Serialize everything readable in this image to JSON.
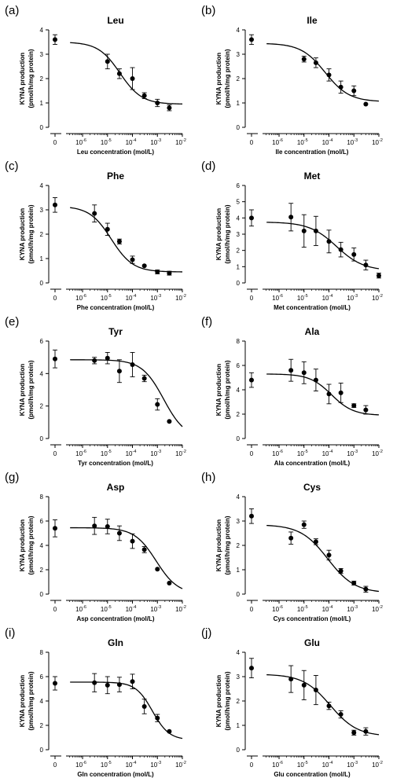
{
  "chart_data": [
    {
      "type": "scatter",
      "panel_label": "(a)",
      "title": "Leu",
      "xlabel": "Leu concentration (mol/L)",
      "ylabel": [
        "KYNA production",
        "(pmol/h/mg protein)"
      ],
      "ylim": [
        0,
        4
      ],
      "yticks": [
        "0",
        "1",
        "2",
        "3",
        "4"
      ],
      "zero_label": "0",
      "xtick_exponents": [
        "-6",
        "-5",
        "-4",
        "-3",
        "-2"
      ],
      "control": {
        "y": 3.6,
        "err": 0.2
      },
      "points": [
        {
          "x": 1e-05,
          "y": 2.7,
          "err": 0.3
        },
        {
          "x": 3e-05,
          "y": 2.2,
          "err": 0.2
        },
        {
          "x": 0.0001,
          "y": 2.0,
          "err": 0.45
        },
        {
          "x": 0.0003,
          "y": 1.3,
          "err": 0.12
        },
        {
          "x": 0.001,
          "y": 1.0,
          "err": 0.15
        },
        {
          "x": 0.003,
          "y": 0.8,
          "err": 0.12
        }
      ],
      "fit": {
        "top": 3.5,
        "bottom": 0.95,
        "log_ic50": -4.5,
        "hill": 1.0
      }
    },
    {
      "type": "scatter",
      "panel_label": "(b)",
      "title": "Ile",
      "xlabel": "Ile concentration (mol/L)",
      "ylabel": [
        "KYNA production",
        "(pmol/h/mg protein)"
      ],
      "ylim": [
        0,
        4
      ],
      "yticks": [
        "0",
        "1",
        "2",
        "3",
        "4"
      ],
      "zero_label": "0",
      "xtick_exponents": [
        "-6",
        "-5",
        "-4",
        "-3",
        "-2"
      ],
      "control": {
        "y": 3.6,
        "err": 0.2
      },
      "points": [
        {
          "x": 1e-05,
          "y": 2.8,
          "err": 0.12
        },
        {
          "x": 3e-05,
          "y": 2.65,
          "err": 0.2
        },
        {
          "x": 0.0001,
          "y": 2.15,
          "err": 0.25
        },
        {
          "x": 0.0003,
          "y": 1.65,
          "err": 0.25
        },
        {
          "x": 0.001,
          "y": 1.5,
          "err": 0.2
        },
        {
          "x": 0.003,
          "y": 0.95,
          "err": 0
        }
      ],
      "fit": {
        "top": 3.45,
        "bottom": 1.05,
        "log_ic50": -4.15,
        "hill": 0.9
      }
    },
    {
      "type": "scatter",
      "panel_label": "(c)",
      "title": "Phe",
      "xlabel": "Phe concentration (mol/L)",
      "ylabel": [
        "KYNA production",
        "(pmol/h/mg protein)"
      ],
      "ylim": [
        0,
        4
      ],
      "yticks": [
        "0",
        "1",
        "2",
        "3",
        "4"
      ],
      "zero_label": "0",
      "xtick_exponents": [
        "-6",
        "-5",
        "-4",
        "-3",
        "-2"
      ],
      "control": {
        "y": 3.2,
        "err": 0.3
      },
      "points": [
        {
          "x": 3e-06,
          "y": 2.85,
          "err": 0.35
        },
        {
          "x": 1e-05,
          "y": 2.2,
          "err": 0.25
        },
        {
          "x": 3e-05,
          "y": 1.7,
          "err": 0.1
        },
        {
          "x": 0.0001,
          "y": 0.95,
          "err": 0.15
        },
        {
          "x": 0.0003,
          "y": 0.7,
          "err": 0
        },
        {
          "x": 0.001,
          "y": 0.45,
          "err": 0.08
        },
        {
          "x": 0.003,
          "y": 0.4,
          "err": 0.08
        }
      ],
      "fit": {
        "top": 3.15,
        "bottom": 0.45,
        "log_ic50": -4.85,
        "hill": 1.0
      }
    },
    {
      "type": "scatter",
      "panel_label": "(d)",
      "title": "Met",
      "xlabel": "Met concentration (mol/L)",
      "ylabel": [
        "KYNA production",
        "(pmol/h/mg protein)"
      ],
      "ylim": [
        0,
        6
      ],
      "yticks": [
        "0",
        "1",
        "2",
        "3",
        "4",
        "5",
        "6"
      ],
      "zero_label": "0",
      "xtick_exponents": [
        "-6",
        "-5",
        "-4",
        "-3",
        "-2"
      ],
      "control": {
        "y": 4.0,
        "err": 0.5
      },
      "points": [
        {
          "x": 3e-06,
          "y": 4.05,
          "err": 0.85
        },
        {
          "x": 1e-05,
          "y": 3.2,
          "err": 1.0
        },
        {
          "x": 3e-05,
          "y": 3.2,
          "err": 0.9
        },
        {
          "x": 0.0001,
          "y": 2.55,
          "err": 0.7
        },
        {
          "x": 0.0003,
          "y": 2.05,
          "err": 0.45
        },
        {
          "x": 0.001,
          "y": 1.75,
          "err": 0.4
        },
        {
          "x": 0.003,
          "y": 1.1,
          "err": 0.3
        },
        {
          "x": 0.01,
          "y": 0.45,
          "err": 0.15
        }
      ],
      "fit": {
        "top": 3.75,
        "bottom": 0.75,
        "log_ic50": -3.7,
        "hill": 0.8
      }
    },
    {
      "type": "scatter",
      "panel_label": "(e)",
      "title": "Tyr",
      "xlabel": "Tyr concentration (mol/L)",
      "ylabel": [
        "KYNA production",
        "(pmol/h/mg protein)"
      ],
      "ylim": [
        0,
        6
      ],
      "yticks": [
        "0",
        "2",
        "4",
        "6"
      ],
      "zero_label": "0",
      "xtick_exponents": [
        "-6",
        "-5",
        "-4",
        "-3",
        "-2"
      ],
      "control": {
        "y": 4.9,
        "err": 0.55
      },
      "points": [
        {
          "x": 3e-06,
          "y": 4.8,
          "err": 0.2
        },
        {
          "x": 1e-05,
          "y": 4.95,
          "err": 0.35
        },
        {
          "x": 3e-05,
          "y": 4.15,
          "err": 0.7
        },
        {
          "x": 0.0001,
          "y": 4.55,
          "err": 0.75
        },
        {
          "x": 0.0003,
          "y": 3.7,
          "err": 0.2
        },
        {
          "x": 0.001,
          "y": 2.1,
          "err": 0.35
        },
        {
          "x": 0.003,
          "y": 1.05,
          "err": 0
        }
      ],
      "fit": {
        "top": 4.85,
        "bottom": 0,
        "log_ic50": -2.75,
        "hill": 1.0
      }
    },
    {
      "type": "scatter",
      "panel_label": "(f)",
      "title": "Ala",
      "xlabel": "Ala concentration (mol/L)",
      "ylabel": [
        "KYNA production",
        "(pmol/h/mg protein)"
      ],
      "ylim": [
        0,
        8
      ],
      "yticks": [
        "0",
        "2",
        "4",
        "6",
        "8"
      ],
      "zero_label": "0",
      "xtick_exponents": [
        "-6",
        "-5",
        "-4",
        "-3",
        "-2"
      ],
      "control": {
        "y": 4.8,
        "err": 0.6
      },
      "points": [
        {
          "x": 3e-06,
          "y": 5.6,
          "err": 0.9
        },
        {
          "x": 1e-05,
          "y": 5.4,
          "err": 0.9
        },
        {
          "x": 3e-05,
          "y": 4.8,
          "err": 0.9
        },
        {
          "x": 0.0001,
          "y": 3.65,
          "err": 0.8
        },
        {
          "x": 0.0003,
          "y": 3.75,
          "err": 0.8
        },
        {
          "x": 0.001,
          "y": 2.7,
          "err": 0.15
        },
        {
          "x": 0.003,
          "y": 2.35,
          "err": 0.35
        }
      ],
      "fit": {
        "top": 5.3,
        "bottom": 1.9,
        "log_ic50": -3.9,
        "hill": 1.0
      }
    },
    {
      "type": "scatter",
      "panel_label": "(g)",
      "title": "Asp",
      "xlabel": "Asp concentration (mol/L)",
      "ylabel": [
        "KYNA production",
        "(pmol/h/mg protein)"
      ],
      "ylim": [
        0,
        8
      ],
      "yticks": [
        "0",
        "2",
        "4",
        "6",
        "8"
      ],
      "zero_label": "0",
      "xtick_exponents": [
        "-6",
        "-5",
        "-4",
        "-3",
        "-2"
      ],
      "control": {
        "y": 5.4,
        "err": 0.7
      },
      "points": [
        {
          "x": 3e-06,
          "y": 5.6,
          "err": 0.7
        },
        {
          "x": 1e-05,
          "y": 5.55,
          "err": 0.6
        },
        {
          "x": 3e-05,
          "y": 5.0,
          "err": 0.6
        },
        {
          "x": 0.0001,
          "y": 4.35,
          "err": 0.6
        },
        {
          "x": 0.0003,
          "y": 3.65,
          "err": 0.25
        },
        {
          "x": 0.001,
          "y": 2.05,
          "err": 0
        },
        {
          "x": 0.003,
          "y": 0.9,
          "err": 0
        }
      ],
      "fit": {
        "top": 5.45,
        "bottom": 0,
        "log_ic50": -3.05,
        "hill": 1.0
      }
    },
    {
      "type": "scatter",
      "panel_label": "(h)",
      "title": "Cys",
      "xlabel": "Cys concentration (mol/L)",
      "ylabel": [
        "KYNA production",
        "(pmol/h/mg protein)"
      ],
      "ylim": [
        0,
        4
      ],
      "yticks": [
        "0",
        "1",
        "2",
        "3",
        "4"
      ],
      "zero_label": "0",
      "xtick_exponents": [
        "-6",
        "-5",
        "-4",
        "-3",
        "-2"
      ],
      "control": {
        "y": 3.2,
        "err": 0.3
      },
      "points": [
        {
          "x": 3e-06,
          "y": 2.3,
          "err": 0.25
        },
        {
          "x": 1e-05,
          "y": 2.85,
          "err": 0.15
        },
        {
          "x": 3e-05,
          "y": 2.15,
          "err": 0.12
        },
        {
          "x": 0.0001,
          "y": 1.6,
          "err": 0.2
        },
        {
          "x": 0.0003,
          "y": 0.95,
          "err": 0.1
        },
        {
          "x": 0.001,
          "y": 0.45,
          "err": 0.08
        },
        {
          "x": 0.003,
          "y": 0.2,
          "err": 0.12
        }
      ],
      "fit": {
        "top": 2.85,
        "bottom": 0.05,
        "log_ic50": -4.05,
        "hill": 0.8
      }
    },
    {
      "type": "scatter",
      "panel_label": "(i)",
      "title": "Gln",
      "xlabel": "Gln concentration (mol/L)",
      "ylabel": [
        "KYNA production",
        "(pmol/h/mg protein)"
      ],
      "ylim": [
        0,
        8
      ],
      "yticks": [
        "0",
        "2",
        "4",
        "6",
        "8"
      ],
      "zero_label": "0",
      "xtick_exponents": [
        "-6",
        "-5",
        "-4",
        "-3",
        "-2"
      ],
      "control": {
        "y": 5.45,
        "err": 0.55
      },
      "points": [
        {
          "x": 3e-06,
          "y": 5.5,
          "err": 0.75
        },
        {
          "x": 1e-05,
          "y": 5.3,
          "err": 0.7
        },
        {
          "x": 3e-05,
          "y": 5.35,
          "err": 0.6
        },
        {
          "x": 0.0001,
          "y": 5.6,
          "err": 0.6
        },
        {
          "x": 0.0003,
          "y": 3.55,
          "err": 0.6
        },
        {
          "x": 0.001,
          "y": 2.6,
          "err": 0.3
        },
        {
          "x": 0.003,
          "y": 1.5,
          "err": 0
        }
      ],
      "fit": {
        "top": 5.55,
        "bottom": 0.8,
        "log_ic50": -3.2,
        "hill": 1.3
      }
    },
    {
      "type": "scatter",
      "panel_label": "(j)",
      "title": "Glu",
      "xlabel": "Glu concentration (mol/L)",
      "ylabel": [
        "KYNA production",
        "(pmol/h/mg protein)"
      ],
      "ylim": [
        0,
        4
      ],
      "yticks": [
        "0",
        "1",
        "2",
        "3",
        "4"
      ],
      "zero_label": "0",
      "xtick_exponents": [
        "-6",
        "-5",
        "-4",
        "-3",
        "-2"
      ],
      "control": {
        "y": 3.35,
        "err": 0.4
      },
      "points": [
        {
          "x": 3e-06,
          "y": 2.9,
          "err": 0.55
        },
        {
          "x": 1e-05,
          "y": 2.65,
          "err": 0.6
        },
        {
          "x": 3e-05,
          "y": 2.45,
          "err": 0.6
        },
        {
          "x": 0.0001,
          "y": 1.8,
          "err": 0.15
        },
        {
          "x": 0.0003,
          "y": 1.45,
          "err": 0.15
        },
        {
          "x": 0.001,
          "y": 0.7,
          "err": 0.1
        },
        {
          "x": 0.003,
          "y": 0.75,
          "err": 0.15
        }
      ],
      "fit": {
        "top": 3.1,
        "bottom": 0.55,
        "log_ic50": -3.95,
        "hill": 0.8
      }
    }
  ]
}
